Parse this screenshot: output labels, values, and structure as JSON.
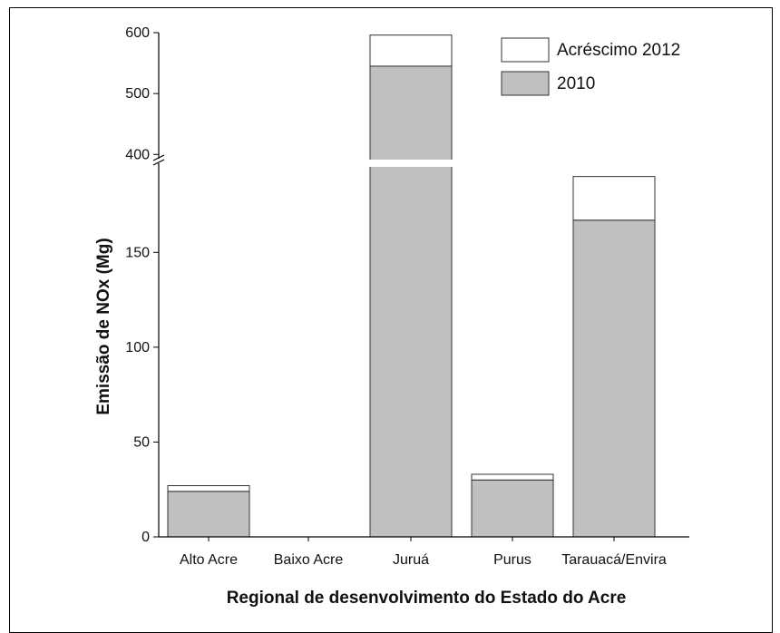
{
  "chart_data": {
    "type": "bar",
    "stacked": true,
    "title": "",
    "xlabel": "Regional de desenvolvimento do Estado do Acre",
    "ylabel": "Emissão de NOx (Mg)",
    "categories": [
      "Alto Acre",
      "Baixo Acre",
      "Juruá",
      "Purus",
      "Tarauacá/Envira"
    ],
    "series": [
      {
        "name": "2010",
        "values": [
          24,
          0,
          545,
          30,
          167
        ],
        "color": "#c0c0c0"
      },
      {
        "name": "Acréscimo 2012",
        "values": [
          3,
          0,
          51,
          3,
          23
        ],
        "color": "#ffffff"
      }
    ],
    "y_axis_break": {
      "lower_range": [
        0,
        197
      ],
      "upper_range": [
        393,
        600
      ]
    },
    "lower_ticks": [
      "0",
      "50",
      "100",
      "150"
    ],
    "upper_ticks": [
      "400",
      "500",
      "600"
    ],
    "legend_position": "top-right",
    "grid": false
  }
}
